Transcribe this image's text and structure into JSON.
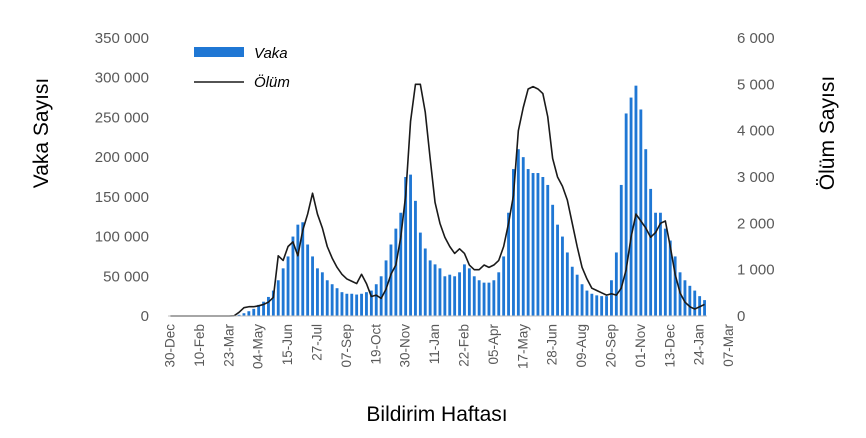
{
  "chart_data": {
    "type": "bar",
    "xlabel": "Bildirim Haftası",
    "ylabel_left": "Vaka Sayısı",
    "ylabel_right": "Ölüm Sayısı",
    "ylim_left": [
      0,
      350000
    ],
    "ylim_right": [
      0,
      6000
    ],
    "yticks_left": [
      "0",
      "50 000",
      "100 000",
      "150 000",
      "200 000",
      "250 000",
      "300 000",
      "350 000"
    ],
    "yticks_right": [
      "0",
      "1 000",
      "2 000",
      "3 000",
      "4 000",
      "5 000",
      "6 000"
    ],
    "x_tick_labels": [
      "30-Dec",
      "10-Feb",
      "23-Mar",
      "04-May",
      "15-Jun",
      "27-Jul",
      "07-Sep",
      "19-Oct",
      "30-Nov",
      "11-Jan",
      "22-Feb",
      "05-Apr",
      "17-May",
      "28-Jun",
      "09-Aug",
      "20-Sep",
      "01-Nov",
      "13-Dec",
      "24-Jan",
      "07-Mar"
    ],
    "x_tick_week_index": [
      0,
      6,
      12,
      18,
      24,
      30,
      36,
      42,
      48,
      54,
      60,
      66,
      72,
      78,
      84,
      90,
      96,
      102,
      108,
      114
    ],
    "legend_position": "top-left",
    "colors": {
      "bars": "#1f77d4",
      "line": "#1a1a1a"
    },
    "series": [
      {
        "name": "Vaka",
        "type": "bar",
        "axis": "left",
        "values": [
          0,
          0,
          0,
          0,
          0,
          0,
          0,
          0,
          0,
          0,
          0,
          0,
          100,
          300,
          1500,
          3500,
          6000,
          9000,
          14000,
          18000,
          24000,
          32000,
          45000,
          60000,
          75000,
          100000,
          115000,
          118000,
          90000,
          75000,
          60000,
          55000,
          45000,
          40000,
          35000,
          30000,
          28000,
          28000,
          27000,
          28000,
          30000,
          32000,
          40000,
          50000,
          70000,
          90000,
          110000,
          130000,
          175000,
          178000,
          145000,
          105000,
          85000,
          70000,
          65000,
          60000,
          50000,
          52000,
          50000,
          55000,
          65000,
          60000,
          50000,
          45000,
          42000,
          42000,
          45000,
          55000,
          75000,
          130000,
          185000,
          210000,
          200000,
          185000,
          180000,
          180000,
          175000,
          165000,
          140000,
          115000,
          100000,
          80000,
          62000,
          52000,
          40000,
          32000,
          28000,
          26000,
          25000,
          25000,
          45000,
          80000,
          165000,
          255000,
          275000,
          290000,
          260000,
          210000,
          160000,
          130000,
          130000,
          110000,
          95000,
          75000,
          55000,
          45000,
          38000,
          32000,
          25000,
          20000
        ]
      },
      {
        "name": "Ölüm",
        "type": "line",
        "axis": "right",
        "values": [
          0,
          0,
          0,
          0,
          0,
          0,
          0,
          0,
          0,
          0,
          0,
          0,
          0,
          5,
          80,
          180,
          200,
          200,
          220,
          250,
          300,
          400,
          1300,
          1200,
          1500,
          1600,
          1300,
          1850,
          2200,
          2650,
          2200,
          1900,
          1500,
          1250,
          1050,
          900,
          800,
          750,
          700,
          900,
          700,
          420,
          450,
          380,
          580,
          900,
          1100,
          1700,
          2600,
          4200,
          5000,
          5000,
          4400,
          3400,
          2450,
          2000,
          1700,
          1500,
          1350,
          1450,
          1350,
          1100,
          1000,
          1000,
          1100,
          1050,
          1100,
          1200,
          1500,
          2000,
          2600,
          4000,
          4500,
          4900,
          4950,
          4900,
          4800,
          4300,
          3400,
          3000,
          2800,
          2500,
          2000,
          1500,
          1050,
          800,
          600,
          550,
          500,
          450,
          480,
          450,
          600,
          1000,
          1700,
          2200,
          2050,
          1900,
          1700,
          1800,
          2000,
          2050,
          1500,
          900,
          500,
          300,
          200,
          150,
          200,
          250
        ]
      }
    ]
  }
}
